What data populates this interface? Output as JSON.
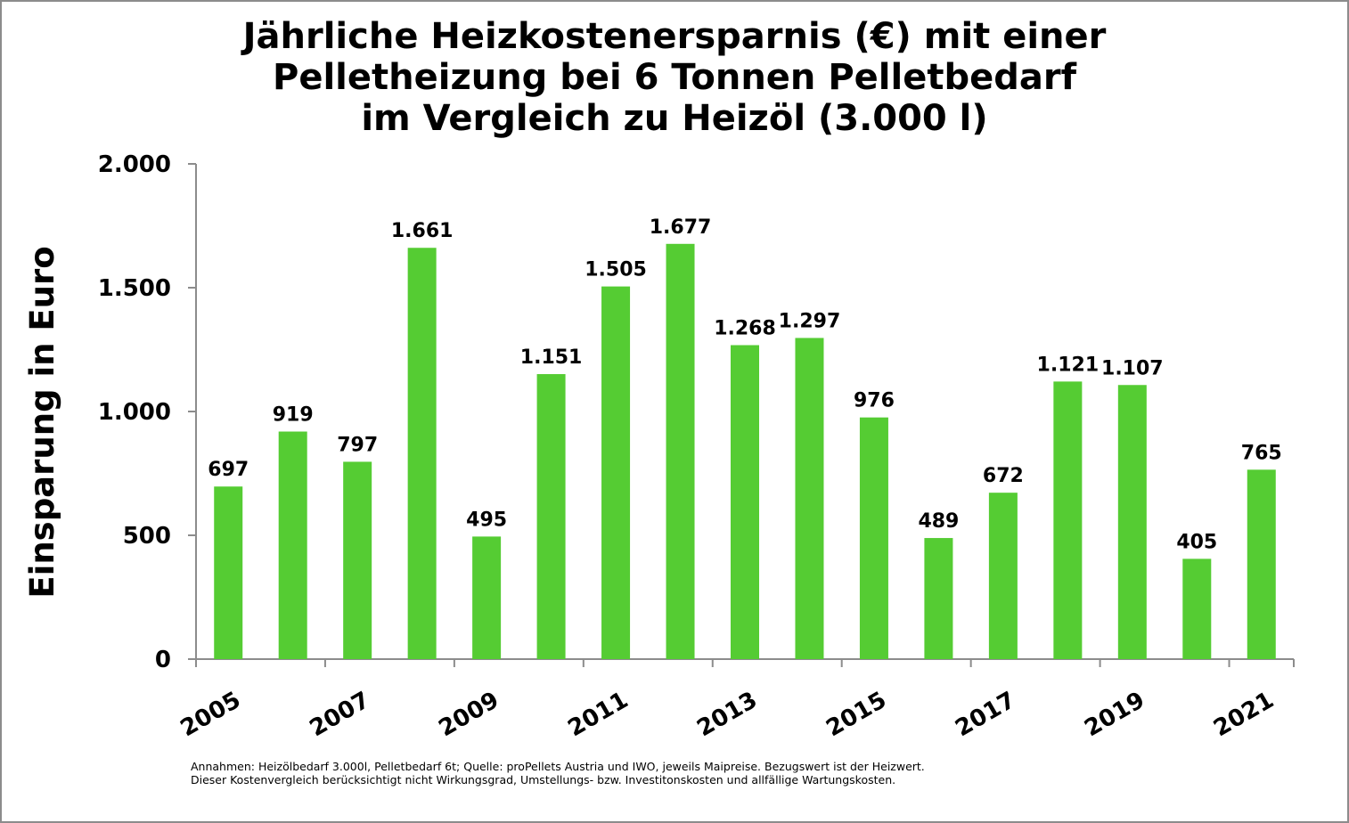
{
  "chart_data": {
    "type": "bar",
    "title_lines": [
      "Jährliche Heizkostenersparnis (€) mit einer",
      "Pelletheizung bei 6 Tonnen Pelletbedarf",
      "im Vergleich zu Heizöl (3.000 l)"
    ],
    "ylabel": "Einsparung in Euro",
    "xlabel": "",
    "ylim": [
      0,
      2000
    ],
    "yticks": [
      0,
      500,
      1000,
      1500,
      2000
    ],
    "ytick_labels": [
      "0",
      "500",
      "1.000",
      "1.500",
      "2.000"
    ],
    "categories": [
      "2005",
      "2006",
      "2007",
      "2008",
      "2009",
      "2010",
      "2011",
      "2012",
      "2013",
      "2014",
      "2015",
      "2016",
      "2017",
      "2018",
      "2019",
      "2020",
      "2021"
    ],
    "xtick_labels": [
      "2005",
      "",
      "2007",
      "",
      "2009",
      "",
      "2011",
      "",
      "2013",
      "",
      "2015",
      "",
      "2017",
      "",
      "2019",
      "",
      "2021"
    ],
    "values": [
      697,
      919,
      797,
      1661,
      495,
      1151,
      1505,
      1677,
      1268,
      1297,
      976,
      489,
      672,
      1121,
      1107,
      405,
      765
    ],
    "value_labels": [
      "697",
      "919",
      "797",
      "1.661",
      "495",
      "1.151",
      "1.505",
      "1.677",
      "1.268",
      "1.297",
      "976",
      "489",
      "672",
      "1.121",
      "1.107",
      "405",
      "765"
    ],
    "bar_color": "#55cc33",
    "grid": false,
    "legend": "none"
  },
  "footnote_lines": [
    "Annahmen: Heizölbedarf 3.000l, Pelletbedarf 6t; Quelle: proPellets Austria und IWO, jeweils Maipreise. Bezugswert ist der Heizwert.",
    "Dieser Kostenvergleich berücksichtigt nicht Wirkungsgrad, Umstellungs- bzw. Investitonskosten und allfällige Wartungskosten."
  ]
}
